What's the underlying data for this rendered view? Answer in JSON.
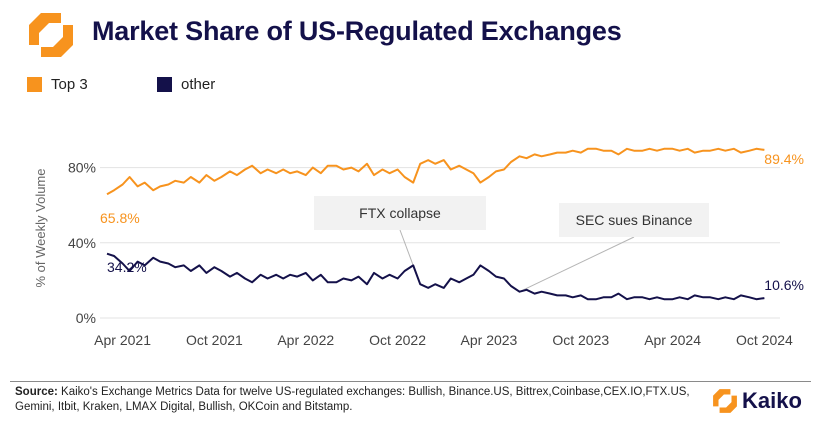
{
  "header": {
    "title": "Market Share of US-Regulated Exchanges"
  },
  "legend": [
    {
      "label": "Top 3",
      "color": "#F7931E"
    },
    {
      "label": "other",
      "color": "#14114A"
    }
  ],
  "chart_data": {
    "type": "line",
    "title": "Market Share of US-Regulated Exchanges",
    "ylabel": "% of Weekly Volume",
    "xlabel": "",
    "x_unit": "weekly dates",
    "ylim": [
      0,
      100
    ],
    "yticks": [
      "0%",
      "40%",
      "80%"
    ],
    "xticks": [
      "Apr 2021",
      "Oct 2021",
      "Apr 2022",
      "Oct 2022",
      "Apr 2023",
      "Oct 2023",
      "Apr 2024",
      "Oct 2024"
    ],
    "grid": "horizontal",
    "series": [
      {
        "name": "Top 3",
        "color": "#F7931E",
        "points": [
          [
            "2021-03-01",
            65.8
          ],
          [
            "2021-03-15",
            68
          ],
          [
            "2021-04-01",
            71
          ],
          [
            "2021-04-15",
            75
          ],
          [
            "2021-05-01",
            70
          ],
          [
            "2021-05-15",
            72
          ],
          [
            "2021-06-01",
            68
          ],
          [
            "2021-06-15",
            70
          ],
          [
            "2021-07-01",
            71
          ],
          [
            "2021-07-15",
            73
          ],
          [
            "2021-08-01",
            72
          ],
          [
            "2021-08-15",
            75
          ],
          [
            "2021-09-01",
            72
          ],
          [
            "2021-09-15",
            76
          ],
          [
            "2021-10-01",
            73
          ],
          [
            "2021-10-15",
            75
          ],
          [
            "2021-11-01",
            78
          ],
          [
            "2021-11-15",
            76
          ],
          [
            "2021-12-01",
            79
          ],
          [
            "2021-12-15",
            81
          ],
          [
            "2022-01-01",
            77
          ],
          [
            "2022-01-15",
            79
          ],
          [
            "2022-02-01",
            77
          ],
          [
            "2022-02-15",
            79
          ],
          [
            "2022-03-01",
            77
          ],
          [
            "2022-03-15",
            78
          ],
          [
            "2022-04-01",
            76
          ],
          [
            "2022-04-15",
            80
          ],
          [
            "2022-05-01",
            77
          ],
          [
            "2022-05-15",
            81
          ],
          [
            "2022-06-01",
            81
          ],
          [
            "2022-06-15",
            79
          ],
          [
            "2022-07-01",
            80
          ],
          [
            "2022-07-15",
            78
          ],
          [
            "2022-08-01",
            82
          ],
          [
            "2022-08-15",
            76
          ],
          [
            "2022-09-01",
            79
          ],
          [
            "2022-09-15",
            77
          ],
          [
            "2022-10-01",
            79
          ],
          [
            "2022-10-15",
            75
          ],
          [
            "2022-11-01",
            72
          ],
          [
            "2022-11-15",
            82
          ],
          [
            "2022-12-01",
            84
          ],
          [
            "2022-12-15",
            82
          ],
          [
            "2023-01-01",
            84
          ],
          [
            "2023-01-15",
            79
          ],
          [
            "2023-02-01",
            81
          ],
          [
            "2023-02-15",
            79
          ],
          [
            "2023-03-01",
            77
          ],
          [
            "2023-03-15",
            72
          ],
          [
            "2023-04-01",
            75
          ],
          [
            "2023-04-15",
            78
          ],
          [
            "2023-05-01",
            79
          ],
          [
            "2023-05-15",
            83
          ],
          [
            "2023-06-01",
            86
          ],
          [
            "2023-06-15",
            85
          ],
          [
            "2023-07-01",
            87
          ],
          [
            "2023-07-15",
            86
          ],
          [
            "2023-08-01",
            87
          ],
          [
            "2023-08-15",
            88
          ],
          [
            "2023-09-01",
            88
          ],
          [
            "2023-09-15",
            89
          ],
          [
            "2023-10-01",
            88
          ],
          [
            "2023-10-15",
            90
          ],
          [
            "2023-11-01",
            90
          ],
          [
            "2023-11-15",
            89
          ],
          [
            "2023-12-01",
            89
          ],
          [
            "2023-12-15",
            87
          ],
          [
            "2024-01-01",
            90
          ],
          [
            "2024-01-15",
            89
          ],
          [
            "2024-02-01",
            89
          ],
          [
            "2024-02-15",
            90
          ],
          [
            "2024-03-01",
            89
          ],
          [
            "2024-03-15",
            90
          ],
          [
            "2024-04-01",
            90
          ],
          [
            "2024-04-15",
            89
          ],
          [
            "2024-05-01",
            90
          ],
          [
            "2024-05-15",
            88
          ],
          [
            "2024-06-01",
            89
          ],
          [
            "2024-06-15",
            89
          ],
          [
            "2024-07-01",
            90
          ],
          [
            "2024-07-15",
            89
          ],
          [
            "2024-08-01",
            90
          ],
          [
            "2024-08-15",
            88
          ],
          [
            "2024-09-01",
            89
          ],
          [
            "2024-09-15",
            90
          ],
          [
            "2024-10-01",
            89.4
          ]
        ]
      },
      {
        "name": "other",
        "color": "#14114A",
        "points": [
          [
            "2021-03-01",
            34.2
          ],
          [
            "2021-03-15",
            33
          ],
          [
            "2021-04-01",
            29
          ],
          [
            "2021-04-15",
            25
          ],
          [
            "2021-05-01",
            30
          ],
          [
            "2021-05-15",
            28
          ],
          [
            "2021-06-01",
            32
          ],
          [
            "2021-06-15",
            30
          ],
          [
            "2021-07-01",
            29
          ],
          [
            "2021-07-15",
            27
          ],
          [
            "2021-08-01",
            28
          ],
          [
            "2021-08-15",
            25
          ],
          [
            "2021-09-01",
            28
          ],
          [
            "2021-09-15",
            24
          ],
          [
            "2021-10-01",
            27
          ],
          [
            "2021-10-15",
            25
          ],
          [
            "2021-11-01",
            22
          ],
          [
            "2021-11-15",
            24
          ],
          [
            "2021-12-01",
            21
          ],
          [
            "2021-12-15",
            19
          ],
          [
            "2022-01-01",
            23
          ],
          [
            "2022-01-15",
            21
          ],
          [
            "2022-02-01",
            23
          ],
          [
            "2022-02-15",
            21
          ],
          [
            "2022-03-01",
            23
          ],
          [
            "2022-03-15",
            22
          ],
          [
            "2022-04-01",
            24
          ],
          [
            "2022-04-15",
            20
          ],
          [
            "2022-05-01",
            23
          ],
          [
            "2022-05-15",
            19
          ],
          [
            "2022-06-01",
            19
          ],
          [
            "2022-06-15",
            21
          ],
          [
            "2022-07-01",
            20
          ],
          [
            "2022-07-15",
            22
          ],
          [
            "2022-08-01",
            18
          ],
          [
            "2022-08-15",
            24
          ],
          [
            "2022-09-01",
            21
          ],
          [
            "2022-09-15",
            23
          ],
          [
            "2022-10-01",
            21
          ],
          [
            "2022-10-15",
            25
          ],
          [
            "2022-11-01",
            28
          ],
          [
            "2022-11-15",
            18
          ],
          [
            "2022-12-01",
            16
          ],
          [
            "2022-12-15",
            18
          ],
          [
            "2023-01-01",
            16
          ],
          [
            "2023-01-15",
            21
          ],
          [
            "2023-02-01",
            19
          ],
          [
            "2023-02-15",
            21
          ],
          [
            "2023-03-01",
            23
          ],
          [
            "2023-03-15",
            28
          ],
          [
            "2023-04-01",
            25
          ],
          [
            "2023-04-15",
            22
          ],
          [
            "2023-05-01",
            21
          ],
          [
            "2023-05-15",
            17
          ],
          [
            "2023-06-01",
            14
          ],
          [
            "2023-06-15",
            15
          ],
          [
            "2023-07-01",
            13
          ],
          [
            "2023-07-15",
            14
          ],
          [
            "2023-08-01",
            13
          ],
          [
            "2023-08-15",
            12
          ],
          [
            "2023-09-01",
            12
          ],
          [
            "2023-09-15",
            11
          ],
          [
            "2023-10-01",
            12
          ],
          [
            "2023-10-15",
            10
          ],
          [
            "2023-11-01",
            10
          ],
          [
            "2023-11-15",
            11
          ],
          [
            "2023-12-01",
            11
          ],
          [
            "2023-12-15",
            13
          ],
          [
            "2024-01-01",
            10
          ],
          [
            "2024-01-15",
            11
          ],
          [
            "2024-02-01",
            11
          ],
          [
            "2024-02-15",
            10
          ],
          [
            "2024-03-01",
            11
          ],
          [
            "2024-03-15",
            10
          ],
          [
            "2024-04-01",
            10
          ],
          [
            "2024-04-15",
            11
          ],
          [
            "2024-05-01",
            10
          ],
          [
            "2024-05-15",
            12
          ],
          [
            "2024-06-01",
            11
          ],
          [
            "2024-06-15",
            11
          ],
          [
            "2024-07-01",
            10
          ],
          [
            "2024-07-15",
            11
          ],
          [
            "2024-08-01",
            10
          ],
          [
            "2024-08-15",
            12
          ],
          [
            "2024-09-01",
            11
          ],
          [
            "2024-09-15",
            10
          ],
          [
            "2024-10-01",
            10.6
          ]
        ]
      }
    ],
    "value_labels": [
      {
        "series": "Top 3",
        "position": "start",
        "text": "65.8%"
      },
      {
        "series": "Top 3",
        "position": "end",
        "text": "89.4%"
      },
      {
        "series": "other",
        "position": "start",
        "text": "34.2%"
      },
      {
        "series": "other",
        "position": "end",
        "text": "10.6%"
      }
    ],
    "annotations": [
      {
        "text": "FTX collapse",
        "date": "2022-11-15",
        "value": 18
      },
      {
        "text": "SEC sues Binance",
        "date": "2023-06-01",
        "value": 14
      }
    ]
  },
  "footer": {
    "source_label": "Source:",
    "source_text": "Kaiko's Exchange Metrics Data for twelve US-regulated exchanges: Bullish, Binance.US, Bittrex,Coinbase,CEX.IO,FTX.US, Gemini, Itbit, Kraken, LMAX Digital, Bullish, OKCoin and Bitstamp."
  },
  "brand": {
    "name": "Kaiko",
    "logo_icon": "kaiko-logo-icon"
  }
}
